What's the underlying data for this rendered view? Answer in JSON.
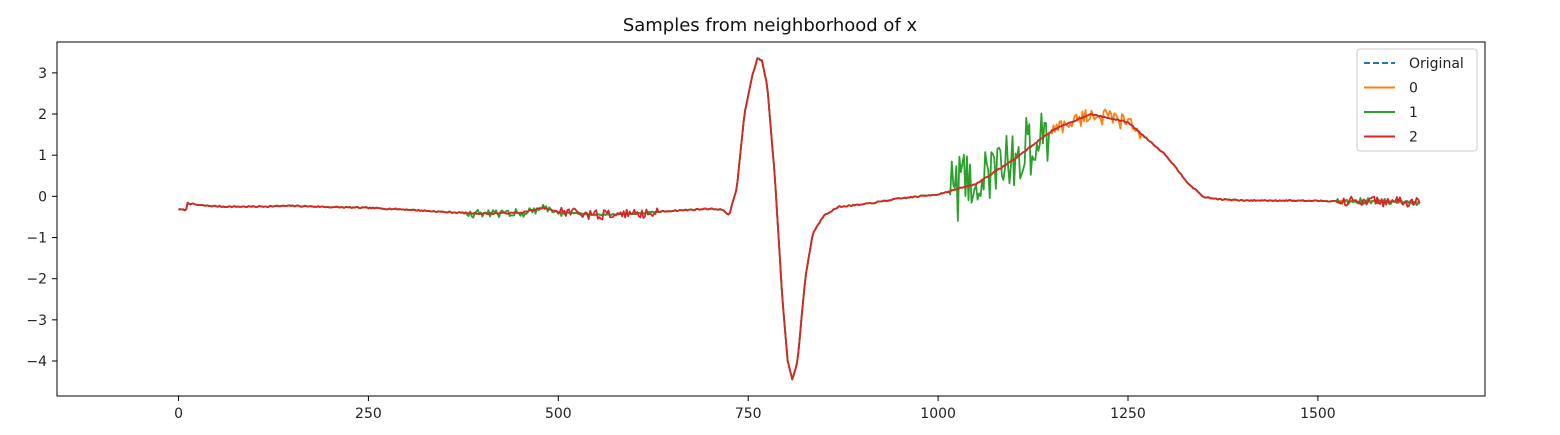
{
  "chart_data": {
    "type": "line",
    "title": "Samples from neighborhood of x",
    "xlabel": "",
    "ylabel": "",
    "xlim": [
      -160,
      1720
    ],
    "ylim": [
      -4.85,
      3.75
    ],
    "x_ticks": [
      0,
      250,
      500,
      750,
      1000,
      1250,
      1500
    ],
    "x_tick_labels": [
      "0",
      "250",
      "500",
      "750",
      "1000",
      "1250",
      "1500"
    ],
    "y_ticks": [
      3,
      2,
      1,
      0,
      -1,
      -2,
      -3,
      -4
    ],
    "y_tick_labels": [
      "3",
      "2",
      "1",
      "0",
      "−1",
      "−2",
      "−3",
      "−4"
    ],
    "grid": false,
    "legend_position": "top-right",
    "x_range": [
      0,
      1635
    ],
    "base_curve": [
      [
        0,
        -0.32
      ],
      [
        10,
        -0.33
      ],
      [
        12,
        -0.15
      ],
      [
        15,
        -0.18
      ],
      [
        30,
        -0.22
      ],
      [
        60,
        -0.25
      ],
      [
        100,
        -0.25
      ],
      [
        150,
        -0.23
      ],
      [
        200,
        -0.26
      ],
      [
        250,
        -0.28
      ],
      [
        300,
        -0.32
      ],
      [
        350,
        -0.38
      ],
      [
        400,
        -0.42
      ],
      [
        450,
        -0.4
      ],
      [
        470,
        -0.32
      ],
      [
        480,
        -0.28
      ],
      [
        500,
        -0.38
      ],
      [
        550,
        -0.45
      ],
      [
        600,
        -0.42
      ],
      [
        650,
        -0.35
      ],
      [
        700,
        -0.3
      ],
      [
        715,
        -0.32
      ],
      [
        725,
        -0.45
      ],
      [
        735,
        0.2
      ],
      [
        745,
        2.0
      ],
      [
        755,
        2.9
      ],
      [
        762,
        3.35
      ],
      [
        768,
        3.3
      ],
      [
        775,
        2.7
      ],
      [
        785,
        0.5
      ],
      [
        795,
        -2.5
      ],
      [
        802,
        -4.0
      ],
      [
        808,
        -4.45
      ],
      [
        815,
        -4.0
      ],
      [
        825,
        -2.0
      ],
      [
        835,
        -0.9
      ],
      [
        850,
        -0.45
      ],
      [
        870,
        -0.25
      ],
      [
        900,
        -0.2
      ],
      [
        950,
        -0.05
      ],
      [
        1000,
        0.05
      ],
      [
        1050,
        0.3
      ],
      [
        1100,
        0.9
      ],
      [
        1150,
        1.6
      ],
      [
        1200,
        2.0
      ],
      [
        1250,
        1.8
      ],
      [
        1300,
        1.0
      ],
      [
        1330,
        0.3
      ],
      [
        1350,
        -0.02
      ],
      [
        1370,
        -0.07
      ],
      [
        1400,
        -0.1
      ],
      [
        1450,
        -0.1
      ],
      [
        1500,
        -0.11
      ],
      [
        1550,
        -0.12
      ],
      [
        1600,
        -0.13
      ],
      [
        1635,
        -0.15
      ]
    ],
    "series": [
      {
        "name": "Original",
        "color": "#1f77b4",
        "style": "dashed"
      },
      {
        "name": "0",
        "color": "#ff7f0e",
        "style": "solid",
        "noise_segments": [
          {
            "x_start": 1150,
            "x_end": 1270,
            "noise": 0.2
          }
        ]
      },
      {
        "name": "1",
        "color": "#2ca02c",
        "style": "solid",
        "noise_segments": [
          {
            "x_start": 380,
            "x_end": 510,
            "noise": 0.1
          },
          {
            "x_start": 1015,
            "x_end": 1145,
            "noise": 0.8
          },
          {
            "x_start": 1525,
            "x_end": 1635,
            "noise": 0.08
          }
        ]
      },
      {
        "name": "2",
        "color": "#d62728",
        "style": "solid",
        "noise_segments": [
          {
            "x_start": 500,
            "x_end": 630,
            "noise": 0.12
          },
          {
            "x_start": 1525,
            "x_end": 1635,
            "noise": 0.12
          }
        ]
      }
    ]
  }
}
